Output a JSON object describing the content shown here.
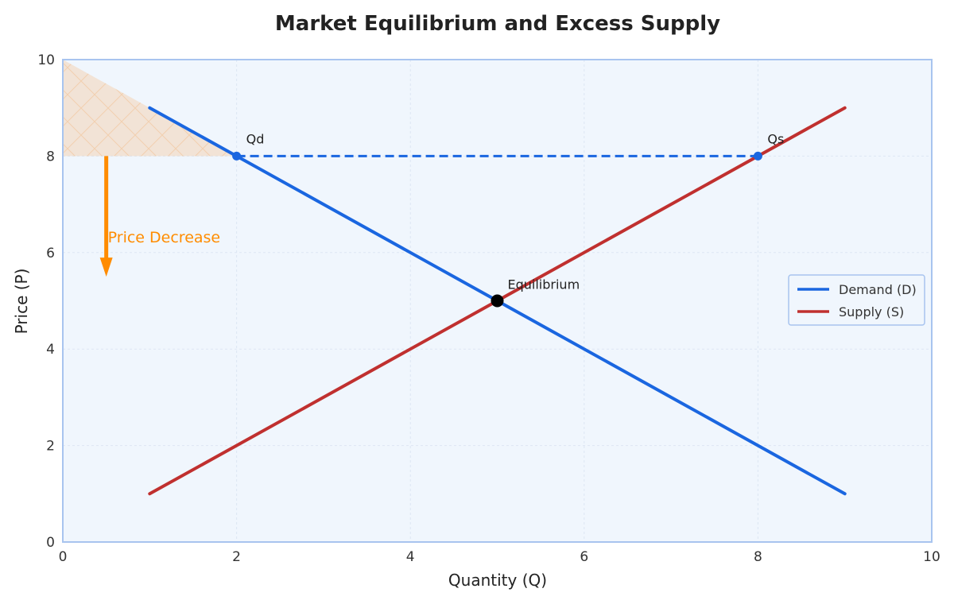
{
  "chart_data": {
    "type": "line",
    "title": "Market Equilibrium and Excess Supply",
    "xlabel": "Quantity (Q)",
    "ylabel": "Price (P)",
    "xlim": [
      0,
      10
    ],
    "ylim": [
      0,
      10
    ],
    "x_ticks": [
      "0",
      "2",
      "4",
      "6",
      "8",
      "10"
    ],
    "y_ticks": [
      "0",
      "2",
      "4",
      "6",
      "8",
      "10"
    ],
    "grid": true,
    "legend_position": "center-right",
    "series": [
      {
        "name": "Demand (D)",
        "color": "#1a66e0",
        "x": [
          1,
          9
        ],
        "y": [
          9,
          1
        ]
      },
      {
        "name": "Supply (S)",
        "color": "#c0302f",
        "x": [
          1,
          9
        ],
        "y": [
          1,
          9
        ]
      }
    ],
    "annotations": {
      "price_line": {
        "y": 8,
        "x_from": 2,
        "x_to": 8,
        "color": "#1a66e0"
      },
      "qd": {
        "label": "Qd",
        "x": 2,
        "y": 8
      },
      "qs": {
        "label": "Qs",
        "x": 8,
        "y": 8
      },
      "equilibrium": {
        "label": "Equilibrium",
        "x": 5,
        "y": 5
      },
      "price_decrease": {
        "label": "Price Decrease",
        "x": 0.5,
        "y_from": 8,
        "y_to": 5.5,
        "color": "#ff8c00"
      },
      "shaded_region": {
        "points": [
          [
            0,
            10
          ],
          [
            0,
            8
          ],
          [
            2,
            8
          ],
          [
            1,
            9
          ]
        ],
        "color": "#f5c89a"
      }
    },
    "colors": {
      "plot_background": "#f0f6fd",
      "plot_border": "#a8c4ef",
      "equilibrium_point": "#000000"
    }
  }
}
